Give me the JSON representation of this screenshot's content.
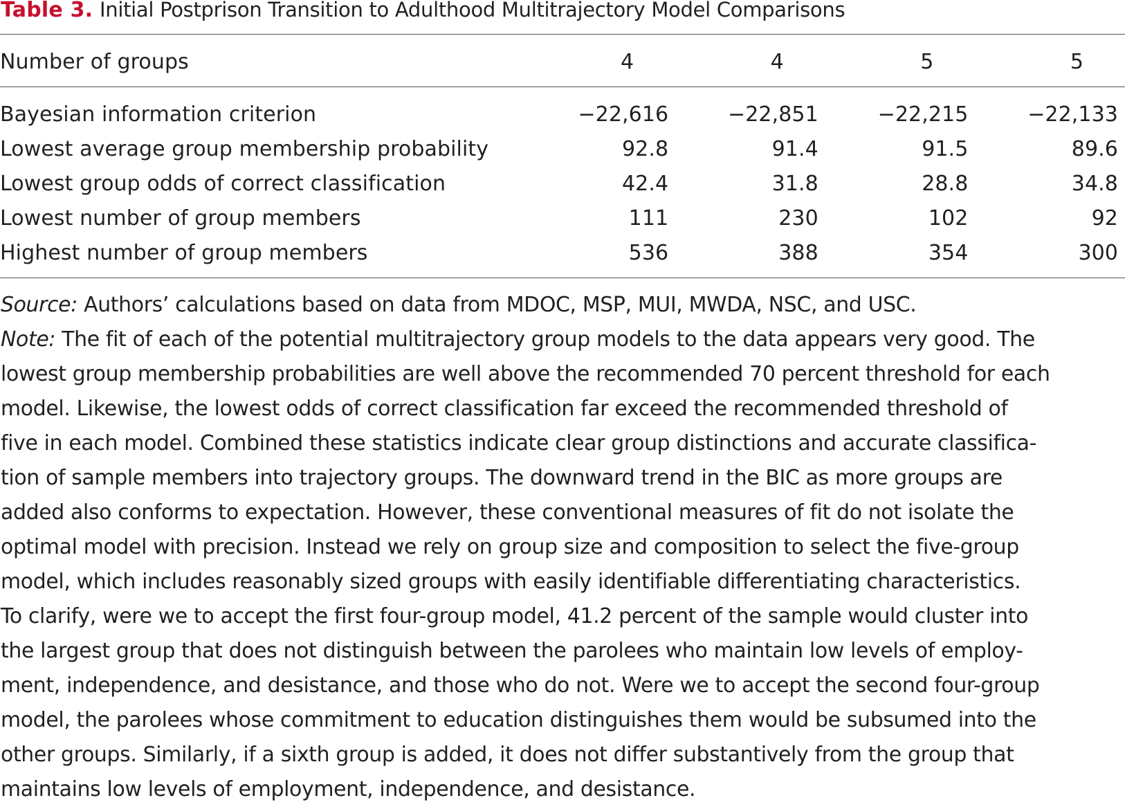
{
  "caption": {
    "label": "Table 3.",
    "title": "Initial Postprison Transition to Adulthood Multitrajectory Model Comparisons"
  },
  "table": {
    "header": {
      "label": "Number of groups",
      "values": [
        "4",
        "4",
        "5",
        "5"
      ]
    },
    "rows": [
      {
        "label": "Bayesian information criterion",
        "values": [
          "−22,616",
          "−22,851",
          "−22,215",
          "−22,133"
        ]
      },
      {
        "label": "Lowest average group membership probability",
        "values": [
          "92.8",
          "91.4",
          "91.5",
          "89.6"
        ]
      },
      {
        "label": "Lowest group odds of correct classification",
        "values": [
          "42.4",
          "31.8",
          "28.8",
          "34.8"
        ]
      },
      {
        "label": "Lowest number of group members",
        "values": [
          "111",
          "230",
          "102",
          "92"
        ]
      },
      {
        "label": "Highest number of group members",
        "values": [
          "536",
          "388",
          "354",
          "300"
        ]
      }
    ]
  },
  "source": {
    "label": "Source:",
    "text": "Authors’ calculations based on data from MDOC, MSP, MUI, MWDA, NSC, and USC."
  },
  "note": {
    "label": "Note:",
    "lines": [
      "The fit of each of the potential multitrajectory group models to the data appears very good. The",
      "lowest group membership probabilities are well above the recommended 70 percent threshold for each",
      "model. Likewise, the lowest odds of correct classification far exceed the recommended threshold of",
      "five in each model. Combined these statistics indicate clear group distinctions and accurate classifica-",
      "tion of sample members into trajectory groups. The downward trend in the BIC as more groups are",
      "added also conforms to expectation. However, these conventional measures of fit do not isolate the",
      "optimal model with precision. Instead we rely on group size and composition to select the five-group",
      "model, which includes reasonably sized groups with easily identifiable differentiating characteristics.",
      "To clarify, were we to accept the first four-group model, 41.2 percent of the sample would cluster into",
      "the largest group that does not distinguish between the parolees who maintain low levels of employ-",
      "ment, independence, and desistance, and those who do not. Were we to accept the second four-group",
      "model, the parolees whose commitment to education distinguishes them would be subsumed into the",
      "other groups. Similarly, if a sixth group is added, it does not differ substantively from the group that",
      "maintains low levels of employment, independence, and desistance."
    ]
  }
}
